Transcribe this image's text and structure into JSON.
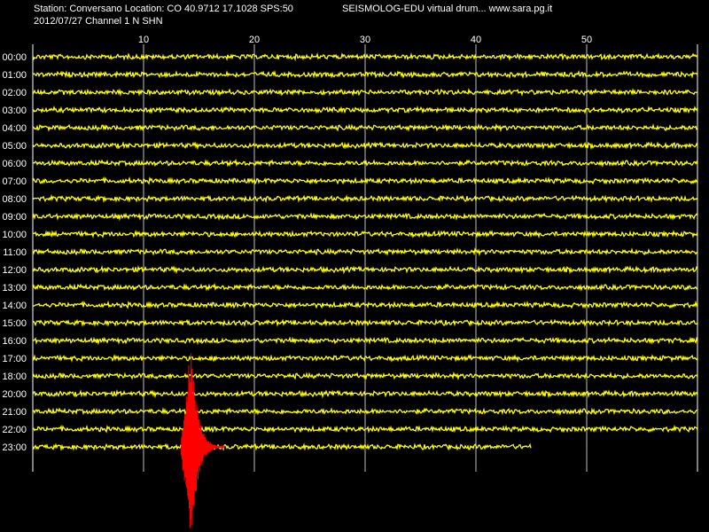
{
  "header": {
    "station_line": "Station: Conversano Location: CO 40.9712 17.1028 SPS:50",
    "date_line": "2012/07/27  Channel 1 N SHN",
    "brand_line": "SEISMOLOG-EDU virtual drum...  www.sara.pg.it"
  },
  "colors": {
    "background": "#000000",
    "trace": "#ffff00",
    "event": "#ff0000",
    "grid": "#ffffff",
    "text": "#ffffff"
  },
  "chart_data": {
    "type": "line",
    "title": "",
    "xlabel": "",
    "ylabel": "",
    "x_unit": "minutes",
    "xlim": [
      0,
      60
    ],
    "x_ticks": [
      10,
      20,
      30,
      40,
      50
    ],
    "row_labels": [
      "00:00",
      "01:00",
      "02:00",
      "03:00",
      "04:00",
      "05:00",
      "06:00",
      "07:00",
      "08:00",
      "09:00",
      "10:00",
      "11:00",
      "12:00",
      "13:00",
      "14:00",
      "15:00",
      "16:00",
      "17:00",
      "18:00",
      "20:00",
      "21:00",
      "22:00",
      "23:00"
    ],
    "grid": true,
    "last_row_end_minute": 45,
    "event": {
      "row": "23:00",
      "onset_minute": 13.4,
      "peak_minute": 14.3,
      "coda_end_minute": 17.3
    }
  }
}
